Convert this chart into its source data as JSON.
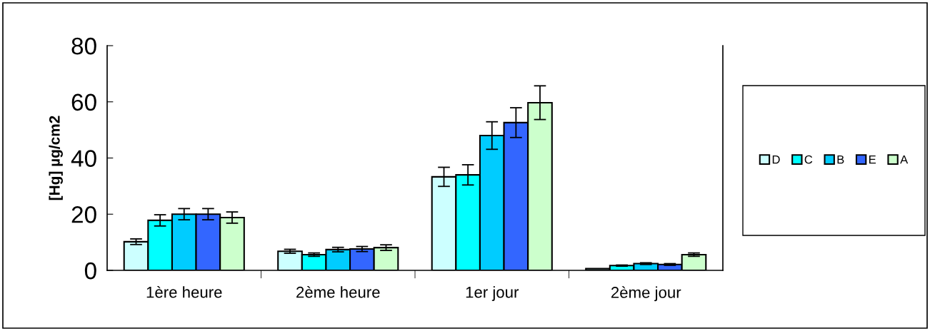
{
  "chart_data": {
    "type": "bar",
    "ylabel": "[Hg] µg/cm2",
    "categories": [
      "1ère heure",
      "2ème heure",
      "1er jour",
      "2ème jour"
    ],
    "series": [
      {
        "name": "D",
        "color": "#ccffff",
        "values": [
          10.2,
          6.8,
          33.3,
          0.6
        ],
        "errors": [
          1,
          0.7,
          3.4,
          null
        ]
      },
      {
        "name": "C",
        "color": "#00ffff",
        "values": [
          17.8,
          5.6,
          34,
          1.7
        ],
        "errors": [
          2,
          0.6,
          3.6,
          0.2
        ]
      },
      {
        "name": "B",
        "color": "#00ccff",
        "values": [
          20,
          7.4,
          48,
          2.4
        ],
        "errors": [
          2,
          0.8,
          4.9,
          0.3
        ]
      },
      {
        "name": "E",
        "color": "#3366ff",
        "values": [
          20,
          7.6,
          52.6,
          2.1
        ],
        "errors": [
          2,
          0.9,
          5.3,
          0.3
        ]
      },
      {
        "name": "A",
        "color": "#ccffcc",
        "values": [
          18.8,
          8.1,
          59.7,
          5.6
        ],
        "errors": [
          2,
          1,
          6,
          0.6
        ]
      }
    ],
    "ylim": [
      0,
      80
    ],
    "yticks": [
      0,
      20,
      40,
      60,
      80
    ],
    "grid": false,
    "legend": "right"
  }
}
